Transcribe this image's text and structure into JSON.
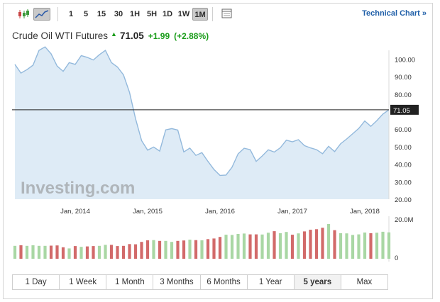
{
  "toolbar": {
    "icons": [
      "candlestick-icon",
      "area-chart-icon",
      "calendar-icon"
    ],
    "intervals": [
      "1",
      "5",
      "15",
      "30",
      "1H",
      "5H",
      "1D",
      "1W",
      "1M"
    ],
    "active_interval": "1M",
    "technical_chart_label": "Technical Chart »"
  },
  "header": {
    "instrument": "Crude Oil WTI Futures",
    "price": "71.05",
    "change": "+1.99",
    "change_pct": "(+2.88%)"
  },
  "chart": {
    "watermark": "Investing.com",
    "current_price_label": "71.05",
    "volume_label": "20.0M",
    "volume_zero_label": "0"
  },
  "chart_data": {
    "type": "area",
    "title": "Crude Oil WTI Futures",
    "y_ticks": [
      "100.00",
      "90.00",
      "80.00",
      "70.00",
      "60.00",
      "50.00",
      "40.00",
      "30.00",
      "20.00"
    ],
    "x_ticks": [
      "Jan, 2014",
      "Jan, 2015",
      "Jan, 2016",
      "Jan, 2017",
      "Jan, 2018"
    ],
    "ylim": [
      20,
      105
    ],
    "current_value": 71.05,
    "price_series": [
      [
        "2013-03",
        97
      ],
      [
        "2013-04",
        92
      ],
      [
        "2013-05",
        94
      ],
      [
        "2013-06",
        96.5
      ],
      [
        "2013-07",
        105
      ],
      [
        "2013-08",
        107
      ],
      [
        "2013-09",
        103
      ],
      [
        "2013-10",
        96
      ],
      [
        "2013-11",
        93
      ],
      [
        "2013-12",
        98
      ],
      [
        "2014-01",
        97
      ],
      [
        "2014-02",
        102
      ],
      [
        "2014-03",
        101
      ],
      [
        "2014-04",
        99.5
      ],
      [
        "2014-05",
        102.5
      ],
      [
        "2014-06",
        105
      ],
      [
        "2014-07",
        98
      ],
      [
        "2014-08",
        95.5
      ],
      [
        "2014-09",
        91
      ],
      [
        "2014-10",
        81
      ],
      [
        "2014-11",
        66
      ],
      [
        "2014-12",
        53.5
      ],
      [
        "2015-01",
        48
      ],
      [
        "2015-02",
        49.8
      ],
      [
        "2015-03",
        47.5
      ],
      [
        "2015-04",
        59.6
      ],
      [
        "2015-05",
        60.3
      ],
      [
        "2015-06",
        59.5
      ],
      [
        "2015-07",
        47
      ],
      [
        "2015-08",
        49.2
      ],
      [
        "2015-09",
        45
      ],
      [
        "2015-10",
        46.6
      ],
      [
        "2015-11",
        41.6
      ],
      [
        "2015-12",
        37
      ],
      [
        "2016-01",
        33.6
      ],
      [
        "2016-02",
        33.8
      ],
      [
        "2016-03",
        38.3
      ],
      [
        "2016-04",
        45.9
      ],
      [
        "2016-05",
        49.1
      ],
      [
        "2016-06",
        48.3
      ],
      [
        "2016-07",
        41.6
      ],
      [
        "2016-08",
        44.7
      ],
      [
        "2016-09",
        48.2
      ],
      [
        "2016-10",
        46.9
      ],
      [
        "2016-11",
        49.4
      ],
      [
        "2016-12",
        53.7
      ],
      [
        "2017-01",
        52.8
      ],
      [
        "2017-02",
        54
      ],
      [
        "2017-03",
        50.6
      ],
      [
        "2017-04",
        49.3
      ],
      [
        "2017-05",
        48.3
      ],
      [
        "2017-06",
        46
      ],
      [
        "2017-07",
        50.2
      ],
      [
        "2017-08",
        47.2
      ],
      [
        "2017-09",
        51.7
      ],
      [
        "2017-10",
        54.4
      ],
      [
        "2017-11",
        57.4
      ],
      [
        "2017-12",
        60.4
      ],
      [
        "2018-01",
        64.7
      ],
      [
        "2018-02",
        61.6
      ],
      [
        "2018-03",
        64.9
      ],
      [
        "2018-04",
        68.6
      ],
      [
        "2018-05",
        71.05
      ]
    ],
    "volume_series": [
      [
        "2013-03",
        6.5,
        "up"
      ],
      [
        "2013-04",
        6.8,
        "down"
      ],
      [
        "2013-05",
        6.5,
        "up"
      ],
      [
        "2013-06",
        6.8,
        "up"
      ],
      [
        "2013-07",
        6.5,
        "up"
      ],
      [
        "2013-08",
        6.5,
        "up"
      ],
      [
        "2013-09",
        6.6,
        "down"
      ],
      [
        "2013-10",
        6.7,
        "down"
      ],
      [
        "2013-11",
        5.8,
        "down"
      ],
      [
        "2013-12",
        5.2,
        "up"
      ],
      [
        "2014-01",
        6.4,
        "down"
      ],
      [
        "2014-02",
        6,
        "up"
      ],
      [
        "2014-03",
        6.2,
        "down"
      ],
      [
        "2014-04",
        6.4,
        "down"
      ],
      [
        "2014-05",
        6.5,
        "up"
      ],
      [
        "2014-06",
        7,
        "up"
      ],
      [
        "2014-07",
        7,
        "down"
      ],
      [
        "2014-08",
        6.4,
        "down"
      ],
      [
        "2014-09",
        6.5,
        "down"
      ],
      [
        "2014-10",
        7.4,
        "down"
      ],
      [
        "2014-11",
        7.3,
        "down"
      ],
      [
        "2014-12",
        8.5,
        "down"
      ],
      [
        "2015-01",
        9.3,
        "down"
      ],
      [
        "2015-02",
        9.4,
        "up"
      ],
      [
        "2015-03",
        9,
        "down"
      ],
      [
        "2015-04",
        9,
        "up"
      ],
      [
        "2015-05",
        8.5,
        "up"
      ],
      [
        "2015-06",
        9,
        "down"
      ],
      [
        "2015-07",
        9.2,
        "down"
      ],
      [
        "2015-08",
        9.6,
        "up"
      ],
      [
        "2015-09",
        9.4,
        "down"
      ],
      [
        "2015-10",
        9.3,
        "up"
      ],
      [
        "2015-11",
        9.9,
        "down"
      ],
      [
        "2015-12",
        10.2,
        "down"
      ],
      [
        "2016-01",
        11,
        "down"
      ],
      [
        "2016-02",
        12.1,
        "up"
      ],
      [
        "2016-03",
        12,
        "up"
      ],
      [
        "2016-04",
        12.5,
        "up"
      ],
      [
        "2016-05",
        12.7,
        "up"
      ],
      [
        "2016-06",
        12.3,
        "down"
      ],
      [
        "2016-07",
        12.3,
        "down"
      ],
      [
        "2016-08",
        12.2,
        "up"
      ],
      [
        "2016-09",
        13.1,
        "up"
      ],
      [
        "2016-10",
        13.9,
        "down"
      ],
      [
        "2016-11",
        12.9,
        "up"
      ],
      [
        "2016-12",
        13.5,
        "up"
      ],
      [
        "2017-01",
        12.1,
        "down"
      ],
      [
        "2017-02",
        12.8,
        "up"
      ],
      [
        "2017-03",
        13.8,
        "down"
      ],
      [
        "2017-04",
        14.6,
        "down"
      ],
      [
        "2017-05",
        14.9,
        "down"
      ],
      [
        "2017-06",
        15.6,
        "down"
      ],
      [
        "2017-07",
        17.5,
        "up"
      ],
      [
        "2017-08",
        14.4,
        "down"
      ],
      [
        "2017-09",
        12.9,
        "up"
      ],
      [
        "2017-10",
        12.8,
        "up"
      ],
      [
        "2017-11",
        12,
        "up"
      ],
      [
        "2017-12",
        12.3,
        "up"
      ],
      [
        "2018-01",
        13.2,
        "up"
      ],
      [
        "2018-02",
        12.9,
        "down"
      ],
      [
        "2018-03",
        13.1,
        "up"
      ],
      [
        "2018-04",
        13.6,
        "up"
      ],
      [
        "2018-05",
        13.3,
        "up"
      ]
    ],
    "colors": {
      "line": "#93b9dc",
      "fill": "#deebf6",
      "volume_up": "#a9d7a4",
      "volume_down": "#d26a6a",
      "price_line": "#222222",
      "price_tag": "#222222"
    },
    "grid": false
  },
  "periods": {
    "items": [
      "1 Day",
      "1 Week",
      "1 Month",
      "3 Months",
      "6 Months",
      "1 Year",
      "5 years",
      "Max"
    ],
    "active": "5 years"
  }
}
